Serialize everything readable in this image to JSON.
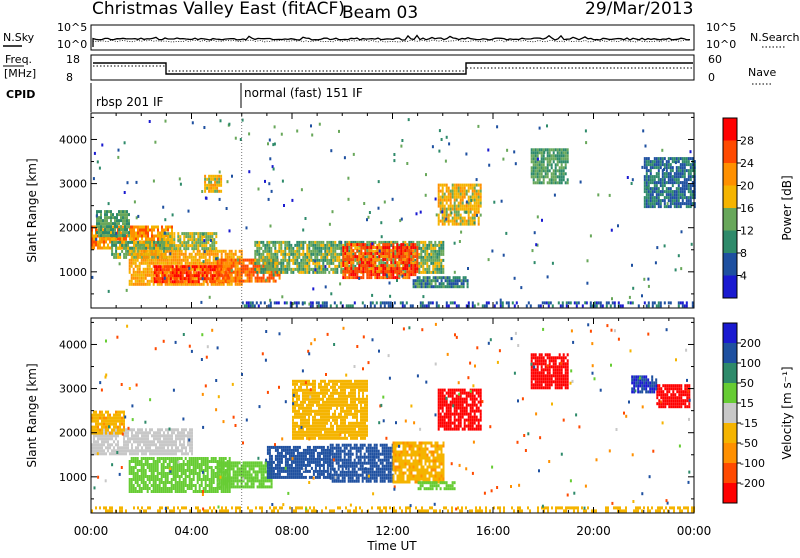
{
  "header": {
    "station": "Christmas Valley East (fitACF)",
    "beam": "Beam 03",
    "date": "29/Mar/2013"
  },
  "panels": {
    "nsky_label": "N.Sky",
    "nsearch_label": "N.Search",
    "freq_label_1": "Freq.",
    "freq_label_2": "[MHz]",
    "nave_label": "Nave",
    "cpid_label": "CPID",
    "noise_ticks_left": [
      "10^5",
      "10^0"
    ],
    "noise_ticks_right": [
      "10^5",
      "10^0"
    ],
    "freq_ticks": [
      "18",
      "8"
    ],
    "nave_ticks": [
      "60",
      "0"
    ],
    "cpid_segments": [
      {
        "label": "rbsp 201 IF",
        "start_hour": 0,
        "end_hour": 6
      },
      {
        "label": "normal (fast) 151 IF",
        "start_hour": 6,
        "end_hour": 24
      }
    ]
  },
  "colorbars": {
    "power": {
      "label": "Power [dB]",
      "ticks": [
        "28",
        "24",
        "20",
        "16",
        "12",
        "8",
        "4"
      ],
      "colors": [
        "#ff0000",
        "#ff4a00",
        "#ff9000",
        "#f5b400",
        "#68a75a",
        "#2e8a6a",
        "#1e50a0",
        "#1a1ad0"
      ]
    },
    "velocity": {
      "label": "Velocity [m s⁻¹]",
      "ticks": [
        "200",
        "100",
        "50",
        "15",
        "-15",
        "-50",
        "-100",
        "-200"
      ],
      "colors": [
        "#1a1ad0",
        "#1e50a0",
        "#2e8a6a",
        "#66cc33",
        "#c8c8c8",
        "#f5b400",
        "#ff9000",
        "#ff4a00",
        "#ff0000"
      ]
    }
  },
  "chart_data": [
    {
      "type": "heatmap",
      "title": "Power",
      "xlabel": "Time UT",
      "ylabel": "Slant Range [km]",
      "x_ticks": [
        "00:00",
        "04:00",
        "08:00",
        "12:00",
        "16:00",
        "20:00",
        "00:00"
      ],
      "y_ticks": [
        "1000",
        "2000",
        "3000",
        "4000"
      ],
      "xlim": [
        0,
        24
      ],
      "ylim": [
        180,
        4600
      ],
      "colorbar": "power",
      "regions": [
        {
          "t0": 0.0,
          "t1": 3.2,
          "r0": 1550,
          "r1": 2050,
          "value": 22
        },
        {
          "t0": 0.8,
          "t1": 3.0,
          "r0": 1300,
          "r1": 1700,
          "value": 14
        },
        {
          "t0": 1.5,
          "t1": 6.0,
          "r0": 700,
          "r1": 1500,
          "value": 20
        },
        {
          "t0": 2.5,
          "t1": 5.5,
          "r0": 750,
          "r1": 1150,
          "value": 27
        },
        {
          "t0": 5.0,
          "t1": 7.5,
          "r0": 800,
          "r1": 1300,
          "value": 24
        },
        {
          "t0": 6.5,
          "t1": 14.0,
          "r0": 1000,
          "r1": 1700,
          "value": 14
        },
        {
          "t0": 10.0,
          "t1": 13.0,
          "r0": 900,
          "r1": 1650,
          "value": 26
        },
        {
          "t0": 12.8,
          "t1": 15.0,
          "r0": 650,
          "r1": 900,
          "value": 10
        },
        {
          "t0": 2.8,
          "t1": 5.0,
          "r0": 1500,
          "r1": 1900,
          "value": 16
        },
        {
          "t0": 13.8,
          "t1": 15.5,
          "r0": 2100,
          "r1": 3000,
          "value": 18
        },
        {
          "t0": 17.5,
          "t1": 19.0,
          "r0": 3000,
          "r1": 3800,
          "value": 12
        },
        {
          "t0": 22.0,
          "t1": 24.0,
          "r0": 2500,
          "r1": 3600,
          "value": 8
        },
        {
          "t0": 0.2,
          "t1": 1.5,
          "r0": 1800,
          "r1": 2400,
          "value": 12
        },
        {
          "t0": 4.5,
          "t1": 5.2,
          "r0": 2800,
          "r1": 3200,
          "value": 18
        },
        {
          "t0": 6.0,
          "t1": 24.0,
          "r0": 200,
          "r1": 330,
          "value": 6
        }
      ]
    },
    {
      "type": "heatmap",
      "title": "Velocity",
      "xlabel": "Time UT",
      "ylabel": "Slant Range [km]",
      "x_ticks": [
        "00:00",
        "04:00",
        "08:00",
        "12:00",
        "16:00",
        "20:00",
        "00:00"
      ],
      "y_ticks": [
        "1000",
        "2000",
        "3000",
        "4000"
      ],
      "xlim": [
        0,
        24
      ],
      "ylim": [
        180,
        4600
      ],
      "colorbar": "velocity",
      "regions": [
        {
          "t0": 0.0,
          "t1": 4.0,
          "r0": 1500,
          "r1": 2100,
          "value": 0
        },
        {
          "t0": 1.5,
          "t1": 5.5,
          "r0": 700,
          "r1": 1450,
          "value": 30
        },
        {
          "t0": 5.0,
          "t1": 7.2,
          "r0": 800,
          "r1": 1350,
          "value": 30
        },
        {
          "t0": 7.0,
          "t1": 9.5,
          "r0": 1000,
          "r1": 1700,
          "value": 150
        },
        {
          "t0": 9.5,
          "t1": 12.0,
          "r0": 900,
          "r1": 1750,
          "value": 120
        },
        {
          "t0": 12.0,
          "t1": 14.0,
          "r0": 900,
          "r1": 1800,
          "value": -40
        },
        {
          "t0": 13.0,
          "t1": 14.5,
          "r0": 700,
          "r1": 900,
          "value": 30
        },
        {
          "t0": 13.8,
          "t1": 15.5,
          "r0": 2100,
          "r1": 3000,
          "value": -250
        },
        {
          "t0": 17.5,
          "t1": 19.0,
          "r0": 3000,
          "r1": 3800,
          "value": -250
        },
        {
          "t0": 22.5,
          "t1": 23.8,
          "r0": 2600,
          "r1": 3100,
          "value": -250
        },
        {
          "t0": 21.5,
          "t1": 22.5,
          "r0": 2900,
          "r1": 3300,
          "value": 200
        },
        {
          "t0": 0.0,
          "t1": 1.3,
          "r0": 2000,
          "r1": 2500,
          "value": -40
        },
        {
          "t0": 8.0,
          "t1": 11.0,
          "r0": 1900,
          "r1": 3200,
          "value": -30
        },
        {
          "t0": 0.0,
          "t1": 24.0,
          "r0": 200,
          "r1": 330,
          "value": -30
        }
      ]
    }
  ]
}
